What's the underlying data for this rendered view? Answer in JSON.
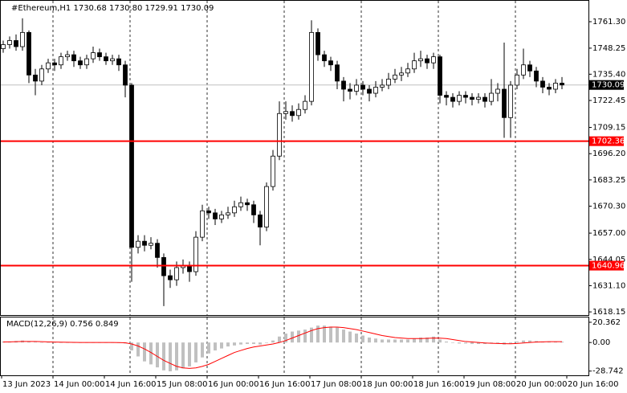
{
  "chart_data": [
    {
      "type": "candlestick",
      "title": "#Ethereum,H1  1730.68 1730.80 1729.91 1730.09",
      "open": [
        1748,
        1750,
        1752,
        1749,
        1756,
        1735,
        1732,
        1738,
        1741,
        1740,
        1744,
        1745,
        1742,
        1740,
        1743,
        1746,
        1744,
        1742,
        1743,
        1740,
        1730,
        1650,
        1653,
        1651,
        1652,
        1645,
        1636,
        1634,
        1640,
        1641,
        1638,
        1655,
        1668,
        1667,
        1664,
        1666,
        1667,
        1670,
        1672,
        1671,
        1666,
        1660,
        1680,
        1695,
        1716,
        1717,
        1715,
        1718,
        1722,
        1756,
        1745,
        1742,
        1740,
        1732,
        1728,
        1727,
        1730,
        1728,
        1726,
        1729,
        1730,
        1733,
        1735,
        1736,
        1738,
        1742,
        1743,
        1741,
        1744,
        1725,
        1724,
        1722,
        1725,
        1724,
        1723,
        1724,
        1722,
        1726,
        1728,
        1714,
        1730,
        1735,
        1740,
        1737,
        1732,
        1729,
        1728,
        1731
      ],
      "high": [
        1752,
        1754,
        1755,
        1763,
        1757,
        1738,
        1740,
        1743,
        1743,
        1746,
        1747,
        1747,
        1744,
        1745,
        1749,
        1748,
        1746,
        1745,
        1745,
        1742,
        1731,
        1656,
        1656,
        1655,
        1654,
        1647,
        1639,
        1643,
        1644,
        1643,
        1658,
        1671,
        1670,
        1669,
        1668,
        1670,
        1673,
        1675,
        1674,
        1673,
        1668,
        1682,
        1698,
        1722,
        1722,
        1720,
        1721,
        1725,
        1762,
        1758,
        1747,
        1744,
        1742,
        1734,
        1731,
        1733,
        1732,
        1730,
        1732,
        1733,
        1736,
        1738,
        1739,
        1741,
        1746,
        1747,
        1745,
        1746,
        1745,
        1727,
        1726,
        1727,
        1727,
        1726,
        1726,
        1726,
        1733,
        1731,
        1751,
        1732,
        1738,
        1748,
        1742,
        1739,
        1734,
        1731,
        1733,
        1734
      ],
      "low": [
        1746,
        1748,
        1747,
        1747,
        1731,
        1725,
        1730,
        1736,
        1737,
        1738,
        1742,
        1739,
        1738,
        1738,
        1741,
        1742,
        1740,
        1740,
        1737,
        1724,
        1633,
        1647,
        1648,
        1649,
        1640,
        1621,
        1630,
        1631,
        1637,
        1633,
        1636,
        1653,
        1664,
        1661,
        1662,
        1664,
        1665,
        1668,
        1668,
        1662,
        1651,
        1658,
        1678,
        1693,
        1713,
        1712,
        1713,
        1716,
        1720,
        1742,
        1739,
        1737,
        1728,
        1722,
        1723,
        1725,
        1725,
        1722,
        1724,
        1727,
        1728,
        1731,
        1732,
        1734,
        1736,
        1739,
        1738,
        1738,
        1721,
        1720,
        1719,
        1720,
        1721,
        1720,
        1721,
        1719,
        1720,
        1722,
        1704,
        1704,
        1728,
        1733,
        1734,
        1729,
        1726,
        1725,
        1726,
        1728
      ],
      "close": [
        1750,
        1752,
        1749,
        1756,
        1735,
        1732,
        1738,
        1741,
        1740,
        1744,
        1745,
        1742,
        1740,
        1743,
        1746,
        1744,
        1742,
        1743,
        1740,
        1730,
        1650,
        1653,
        1651,
        1652,
        1645,
        1636,
        1634,
        1640,
        1641,
        1638,
        1655,
        1668,
        1667,
        1664,
        1666,
        1667,
        1670,
        1672,
        1671,
        1666,
        1660,
        1680,
        1695,
        1716,
        1717,
        1715,
        1718,
        1722,
        1756,
        1745,
        1742,
        1740,
        1732,
        1728,
        1727,
        1730,
        1728,
        1726,
        1729,
        1730,
        1733,
        1735,
        1736,
        1738,
        1742,
        1743,
        1741,
        1744,
        1725,
        1724,
        1722,
        1725,
        1724,
        1723,
        1724,
        1722,
        1726,
        1728,
        1714,
        1730,
        1735,
        1740,
        1737,
        1732,
        1729,
        1728,
        1731,
        1730.09
      ],
      "color": "#000000",
      "ylim": [
        1616.6,
        1772.0
      ],
      "yticks": [
        {
          "value": 1761.3,
          "label": "1761.30"
        },
        1748.25,
        {
          "value": 1735.4,
          "label": "1735.40"
        },
        1722.45,
        1709.15,
        {
          "value": 1696.2,
          "label": "1696.20"
        },
        1683.25,
        {
          "value": 1670.3,
          "label": "1670.30"
        },
        {
          "value": 1657,
          "label": "1657.00"
        },
        1644.05,
        {
          "value": 1631.1,
          "label": "1631.10"
        },
        1618.15
      ],
      "levels": [
        1702.36,
        1640.96
      ],
      "level_color": "#ff0000",
      "last_price": 1730.09,
      "xtick_labels": [
        "13 Jun 2023",
        "14 Jun 00:00",
        "14 Jun 16:00",
        "15 Jun 08:00",
        "16 Jun 00:00",
        "16 Jun 16:00",
        "17 Jun 08:00",
        "18 Jun 00:00",
        "18 Jun 16:00",
        "19 Jun 08:00",
        "20 Jun 00:00",
        "20 Jun 16:00"
      ]
    },
    {
      "type": "macd",
      "title": "MACD(12,26,9) 0.756 0.849",
      "series": [
        {
          "color": "#c0c0c0",
          "values": [
            1,
            1,
            1.5,
            2,
            1,
            0.5,
            0,
            0,
            0,
            0,
            0,
            0,
            0,
            0,
            0,
            0,
            0,
            0,
            -0.5,
            -1,
            -8,
            -14,
            -19,
            -22,
            -25,
            -28,
            -29,
            -28,
            -26,
            -24,
            -20,
            -15,
            -11,
            -8,
            -6,
            -4,
            -3,
            -2,
            -1.5,
            -1.5,
            -2,
            -0.5,
            2,
            6,
            9,
            11,
            12,
            13,
            15,
            17,
            17,
            16,
            15,
            13,
            11,
            9,
            7,
            5,
            4,
            3,
            3,
            3,
            3,
            3,
            4,
            5,
            5,
            6,
            3,
            1,
            -0.5,
            -1,
            -1,
            -1.5,
            -1.5,
            -1.5,
            -1,
            -1,
            -2,
            -1,
            1,
            2,
            2,
            1.5,
            1,
            0.8,
            0.8,
            0.8
          ]
        },
        {
          "color": "#ff0000",
          "values": [
            0.5,
            0.6,
            0.8,
            1,
            1,
            1,
            0.8,
            0.6,
            0.4,
            0.3,
            0.2,
            0.1,
            0,
            0,
            0,
            0,
            0,
            0,
            -0.1,
            -0.3,
            -1.5,
            -3.5,
            -6.5,
            -10,
            -14,
            -18,
            -21,
            -24,
            -25.5,
            -26,
            -25.5,
            -24,
            -22,
            -19,
            -16,
            -13,
            -10,
            -8,
            -6,
            -4.5,
            -3.5,
            -2.5,
            -1.5,
            0,
            2,
            4.5,
            7,
            9.5,
            12,
            14,
            15,
            15.5,
            15.5,
            15,
            14,
            13,
            11.5,
            10,
            8.5,
            7,
            6,
            5,
            4.5,
            4,
            4,
            4,
            4.2,
            4.5,
            4.4,
            4,
            3,
            2,
            1,
            0.5,
            0,
            -0.5,
            -0.8,
            -1,
            -1.2,
            -1.3,
            -1,
            -0.5,
            0,
            0.4,
            0.6,
            0.8,
            0.85,
            0.85
          ]
        }
      ],
      "ylim": [
        -33,
        26
      ],
      "yticks": [
        20.362,
        {
          "value": 0,
          "label": "0.00"
        },
        -28.742
      ]
    }
  ]
}
